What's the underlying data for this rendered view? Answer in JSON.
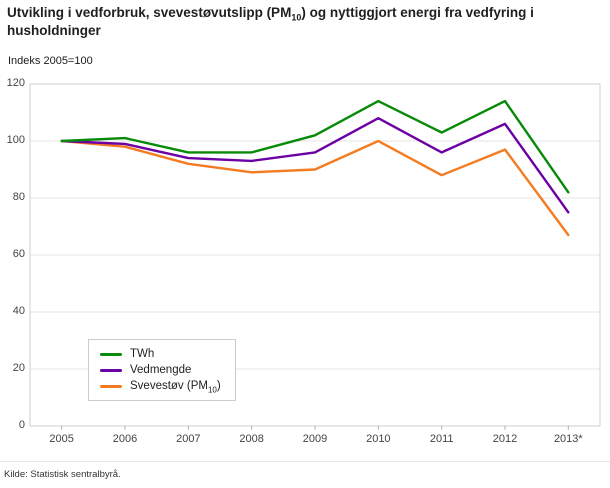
{
  "header": {
    "title": {
      "pre": "Utvikling i vedforbruk, svevestøvutslipp (PM",
      "sub": "10",
      "post": ") og nyttiggjort energi fra vedfyring i husholdninger"
    },
    "axis_note": "Indeks 2005=100"
  },
  "footer": {
    "source": "Kilde: Statistisk sentralbyrå."
  },
  "chart_data": {
    "type": "line",
    "title": "Utvikling i vedforbruk, svevestøvutslipp (PM10) og nyttiggjort energi fra vedfyring i husholdninger",
    "ylabel": "Indeks 2005=100",
    "xlabel": "",
    "categories": [
      "2005",
      "2006",
      "2007",
      "2008",
      "2009",
      "2010",
      "2011",
      "2012",
      "2013*"
    ],
    "series": [
      {
        "name": "TWh",
        "color": "#078a07",
        "label": {
          "pre": "TWh",
          "sub": "",
          "post": ""
        },
        "values": [
          100,
          101,
          96,
          96,
          102,
          114,
          103,
          114,
          82
        ]
      },
      {
        "name": "Vedmengde",
        "color": "#6c00a4",
        "label": {
          "pre": "Vedmengde",
          "sub": "",
          "post": ""
        },
        "values": [
          100,
          99,
          94,
          93,
          96,
          108,
          96,
          106,
          75
        ]
      },
      {
        "name": "Svevestov-PM10",
        "color": "#f47b20",
        "label": {
          "pre": "Svevestøv (PM",
          "sub": "10",
          "post": ")"
        },
        "values": [
          100,
          98,
          92,
          89,
          90,
          100,
          88,
          97,
          67
        ]
      }
    ],
    "ylim": [
      0,
      120
    ],
    "yticks": [
      0,
      20,
      40,
      60,
      80,
      100,
      120
    ],
    "grid": "horizontal",
    "legend_position": "lower-left-inside"
  }
}
